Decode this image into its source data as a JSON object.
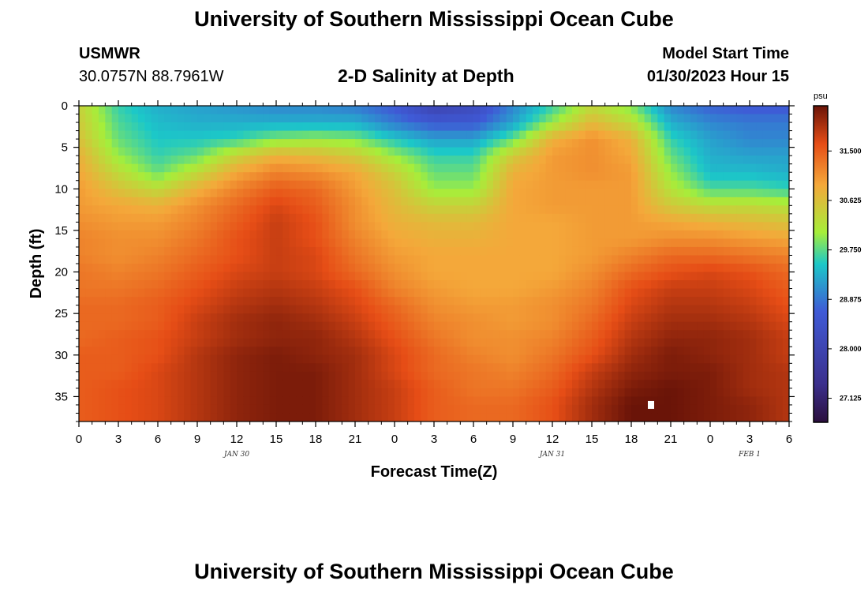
{
  "header": {
    "title": "University of Southern Mississippi Ocean Cube",
    "station": "USMWR",
    "coords": "30.0757N  88.7961W",
    "subtitle": "2-D Salinity at Depth",
    "model_start_label": "Model Start Time",
    "model_start_value": "01/30/2023 Hour 15"
  },
  "footer": {
    "title": "University of Southern Mississippi Ocean Cube"
  },
  "chart_data": {
    "type": "heatmap",
    "title": "2-D Salinity at Depth",
    "xlabel": "Forecast Time(Z)",
    "ylabel": "Depth (ft)",
    "x_tick_labels": [
      "0",
      "3",
      "6",
      "9",
      "12",
      "15",
      "18",
      "21",
      "0",
      "3",
      "6",
      "9",
      "12",
      "15",
      "18",
      "21",
      "0",
      "3",
      "6"
    ],
    "x_hours": [
      0,
      3,
      6,
      9,
      12,
      15,
      18,
      21,
      24,
      27,
      30,
      33,
      36,
      39,
      42,
      45,
      48,
      51,
      54
    ],
    "x_range_hours": [
      0,
      54
    ],
    "day_labels": [
      {
        "hour": 12,
        "text": "JAN 30"
      },
      {
        "hour": 36,
        "text": "JAN 31"
      },
      {
        "hour": 51,
        "text": "FEB 1"
      }
    ],
    "y_tick_labels": [
      "0",
      "5",
      "10",
      "15",
      "20",
      "25",
      "30",
      "35"
    ],
    "y_ticks": [
      0,
      5,
      10,
      15,
      20,
      25,
      30,
      35
    ],
    "ylim": [
      0,
      38
    ],
    "y_inverted": true,
    "colorbar": {
      "unit": "psu",
      "min": 26.7,
      "max": 32.3,
      "tick_labels": [
        "31.500",
        "30.625",
        "29.750",
        "28.875",
        "28.000",
        "27.125"
      ],
      "tick_values": [
        31.5,
        30.625,
        29.75,
        28.875,
        28.0,
        27.125
      ]
    },
    "marker": {
      "hour": 43.5,
      "depth": 36
    },
    "data_hours": [
      0,
      3,
      6,
      9,
      12,
      15,
      18,
      21,
      24,
      27,
      30,
      33,
      36,
      39,
      42,
      45,
      48,
      51,
      54
    ],
    "data_depths": [
      0,
      2,
      4,
      6,
      8,
      10,
      12,
      14,
      16,
      18,
      20,
      22,
      24,
      26,
      28,
      30,
      32,
      34,
      36,
      38
    ],
    "values": [
      [
        30.4,
        29.6,
        29.3,
        29.2,
        29.1,
        29.0,
        29.0,
        28.9,
        28.6,
        28.0,
        28.2,
        29.0,
        29.6,
        30.3,
        29.9,
        29.0,
        28.7,
        28.6,
        28.6
      ],
      [
        30.5,
        29.7,
        29.4,
        29.3,
        29.3,
        29.3,
        29.3,
        29.3,
        28.9,
        28.6,
        28.6,
        29.2,
        30.0,
        30.7,
        30.3,
        29.3,
        29.0,
        28.9,
        28.9
      ],
      [
        30.6,
        29.8,
        29.5,
        29.5,
        29.6,
        29.9,
        30.0,
        29.9,
        29.5,
        29.2,
        29.2,
        29.8,
        30.8,
        31.1,
        30.8,
        29.6,
        29.2,
        29.0,
        29.0
      ],
      [
        30.8,
        30.0,
        29.6,
        29.8,
        30.4,
        30.8,
        30.7,
        30.5,
        30.0,
        29.6,
        29.6,
        30.5,
        31.0,
        31.1,
        30.9,
        29.8,
        29.3,
        29.2,
        29.2
      ],
      [
        30.9,
        30.3,
        29.8,
        30.3,
        30.9,
        31.2,
        31.1,
        30.9,
        30.4,
        29.8,
        29.8,
        30.8,
        31.0,
        31.1,
        31.0,
        30.0,
        29.4,
        29.4,
        29.3
      ],
      [
        31.0,
        30.6,
        30.3,
        30.8,
        31.2,
        31.5,
        31.4,
        31.0,
        30.6,
        30.0,
        30.0,
        30.9,
        31.0,
        31.0,
        31.0,
        30.2,
        29.7,
        29.7,
        29.6
      ],
      [
        31.0,
        30.9,
        30.8,
        31.1,
        31.4,
        31.7,
        31.5,
        31.1,
        30.7,
        30.4,
        30.4,
        30.9,
        31.0,
        31.0,
        31.0,
        30.5,
        30.3,
        30.3,
        30.2
      ],
      [
        31.1,
        31.0,
        31.0,
        31.2,
        31.5,
        31.8,
        31.6,
        31.1,
        30.8,
        30.7,
        30.7,
        30.9,
        30.9,
        31.0,
        31.0,
        30.9,
        30.8,
        30.7,
        30.6
      ],
      [
        31.2,
        31.1,
        31.1,
        31.3,
        31.6,
        31.8,
        31.6,
        31.2,
        30.9,
        30.8,
        30.8,
        30.9,
        30.9,
        31.0,
        31.0,
        31.1,
        31.1,
        31.0,
        30.9
      ],
      [
        31.2,
        31.1,
        31.2,
        31.4,
        31.6,
        31.8,
        31.7,
        31.3,
        31.0,
        30.9,
        30.9,
        30.9,
        30.9,
        31.0,
        31.2,
        31.4,
        31.4,
        31.3,
        31.2
      ],
      [
        31.3,
        31.2,
        31.3,
        31.5,
        31.7,
        31.8,
        31.7,
        31.4,
        31.1,
        30.9,
        30.9,
        30.9,
        30.9,
        31.1,
        31.4,
        31.6,
        31.7,
        31.6,
        31.4
      ],
      [
        31.3,
        31.3,
        31.4,
        31.6,
        31.8,
        31.9,
        31.8,
        31.6,
        31.2,
        31.0,
        30.9,
        30.9,
        31.0,
        31.2,
        31.6,
        31.8,
        31.8,
        31.7,
        31.5
      ],
      [
        31.4,
        31.4,
        31.5,
        31.7,
        31.9,
        32.0,
        31.9,
        31.7,
        31.4,
        31.1,
        31.0,
        31.0,
        31.1,
        31.3,
        31.7,
        31.9,
        31.9,
        31.8,
        31.6
      ],
      [
        31.4,
        31.4,
        31.5,
        31.8,
        32.0,
        32.1,
        32.0,
        31.8,
        31.5,
        31.2,
        31.1,
        31.0,
        31.1,
        31.4,
        31.8,
        32.0,
        32.0,
        31.9,
        31.7
      ],
      [
        31.4,
        31.5,
        31.6,
        31.8,
        32.0,
        32.1,
        32.1,
        31.9,
        31.6,
        31.3,
        31.1,
        31.1,
        31.2,
        31.5,
        31.9,
        32.1,
        32.1,
        32.0,
        31.8
      ],
      [
        31.5,
        31.5,
        31.6,
        31.9,
        32.1,
        32.2,
        32.1,
        32.0,
        31.7,
        31.4,
        31.2,
        31.1,
        31.3,
        31.6,
        32.0,
        32.2,
        32.1,
        32.0,
        31.8
      ],
      [
        31.5,
        31.5,
        31.7,
        31.9,
        32.1,
        32.2,
        32.2,
        32.0,
        31.7,
        31.4,
        31.3,
        31.2,
        31.4,
        31.8,
        32.1,
        32.2,
        32.2,
        32.0,
        31.9
      ],
      [
        31.5,
        31.6,
        31.7,
        31.9,
        32.1,
        32.2,
        32.2,
        32.0,
        31.8,
        31.5,
        31.3,
        31.3,
        31.5,
        31.9,
        32.2,
        32.3,
        32.2,
        32.0,
        31.9
      ],
      [
        31.5,
        31.6,
        31.7,
        31.9,
        32.1,
        32.2,
        32.2,
        32.0,
        31.8,
        31.5,
        31.4,
        31.4,
        31.6,
        32.0,
        32.3,
        32.3,
        32.2,
        32.1,
        31.9
      ],
      [
        31.5,
        31.6,
        31.7,
        31.9,
        32.1,
        32.2,
        32.2,
        32.0,
        31.8,
        31.5,
        31.4,
        31.4,
        31.6,
        32.0,
        32.3,
        32.3,
        32.2,
        32.1,
        31.9
      ]
    ]
  }
}
